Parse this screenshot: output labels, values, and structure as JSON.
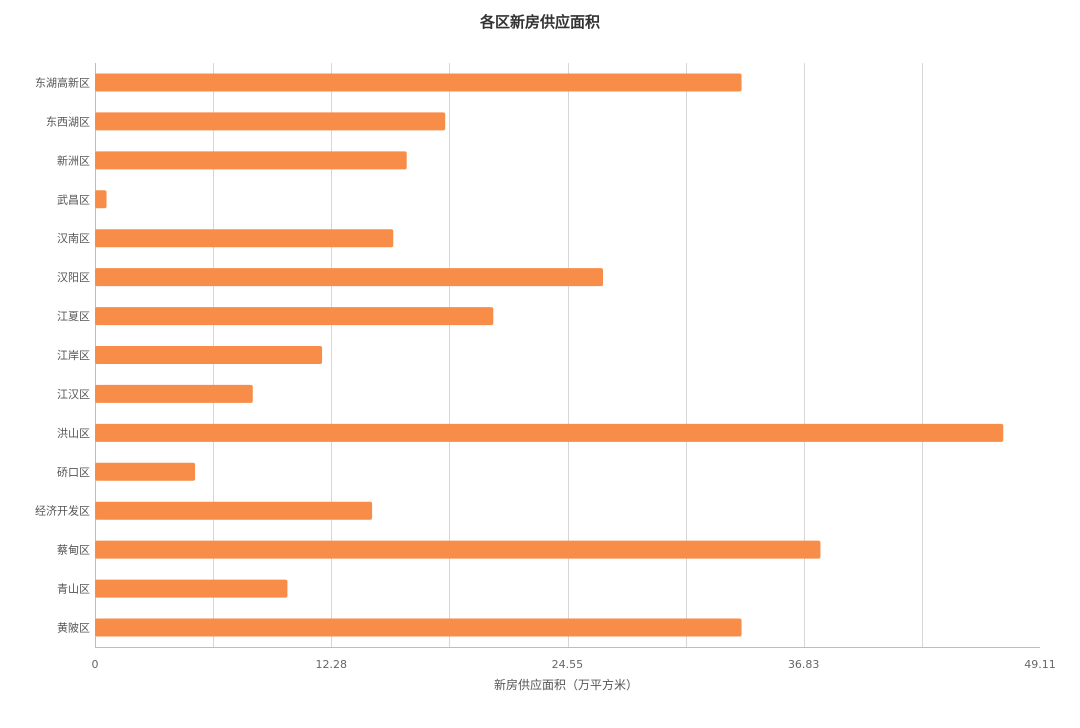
{
  "chart_data": {
    "type": "bar",
    "orientation": "horizontal",
    "title": "各区新房供应面积",
    "xlabel": "新房供应面积（万平方米）",
    "ylabel": "",
    "categories": [
      "东湖高新区",
      "东西湖区",
      "新洲区",
      "武昌区",
      "汉南区",
      "汉阳区",
      "江夏区",
      "江岸区",
      "江汉区",
      "洪山区",
      "硚口区",
      "经济开发区",
      "蔡甸区",
      "青山区",
      "黄陂区"
    ],
    "values": [
      33.6,
      18.2,
      16.2,
      0.6,
      15.5,
      26.4,
      20.7,
      11.8,
      8.2,
      47.2,
      5.2,
      14.4,
      37.7,
      10.0,
      33.6
    ],
    "xlim": [
      0,
      49.11
    ],
    "xticks": [
      0,
      12.28,
      24.55,
      36.83,
      49.11
    ],
    "xtick_labels": [
      "0",
      "12.28",
      "24.55",
      "36.83",
      "49.11"
    ],
    "grid": "vertical",
    "legend": "none",
    "bar_color": "#f78d48"
  }
}
